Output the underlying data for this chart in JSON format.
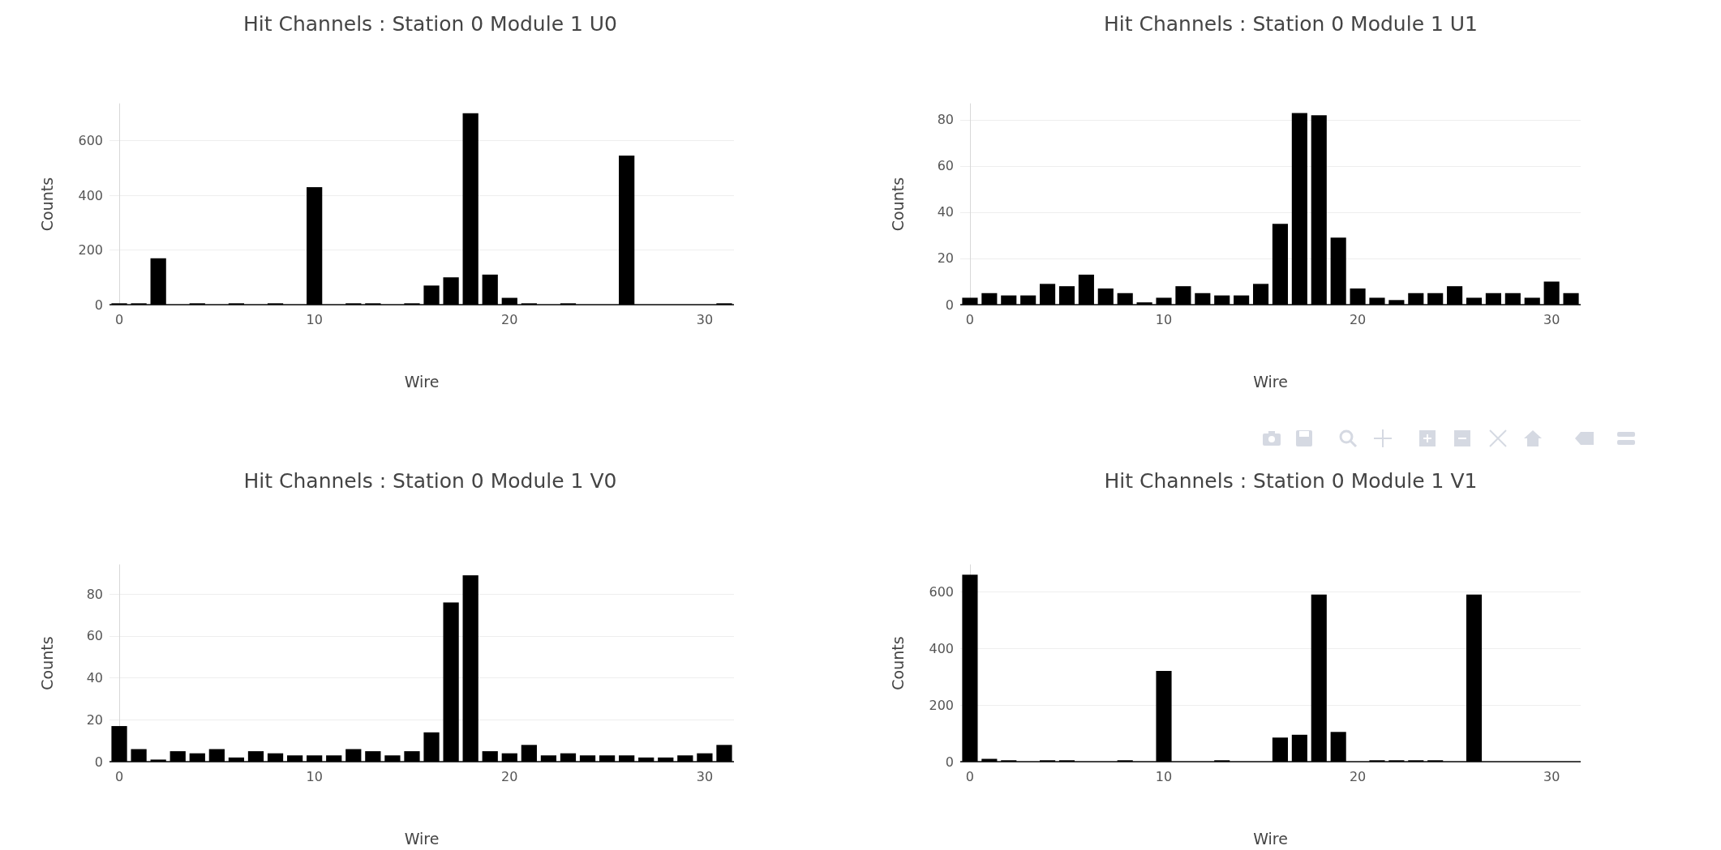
{
  "chart_data": [
    {
      "type": "bar",
      "title": "Hit Channels : Station 0 Module 1 U0",
      "xlabel": "Wire",
      "ylabel": "Counts",
      "color": "#000000",
      "grid": "y",
      "x": [
        0,
        1,
        2,
        3,
        4,
        5,
        6,
        7,
        8,
        9,
        10,
        11,
        12,
        13,
        14,
        15,
        16,
        17,
        18,
        19,
        20,
        21,
        22,
        23,
        24,
        25,
        26,
        27,
        28,
        29,
        30,
        31
      ],
      "xlim": [
        -0.5,
        31.5
      ],
      "xticks": [
        0,
        10,
        20,
        30
      ],
      "ylim": [
        0,
        735
      ],
      "yticks": [
        0,
        200,
        400,
        600
      ],
      "values": [
        5,
        5,
        170,
        0,
        5,
        0,
        5,
        0,
        5,
        0,
        430,
        0,
        5,
        5,
        0,
        5,
        70,
        100,
        700,
        110,
        25,
        5,
        0,
        5,
        0,
        0,
        545,
        0,
        0,
        0,
        0,
        5
      ]
    },
    {
      "type": "bar",
      "title": "Hit Channels : Station 0 Module 1 U1",
      "xlabel": "Wire",
      "ylabel": "Counts",
      "color": "#000000",
      "grid": "y",
      "x": [
        0,
        1,
        2,
        3,
        4,
        5,
        6,
        7,
        8,
        9,
        10,
        11,
        12,
        13,
        14,
        15,
        16,
        17,
        18,
        19,
        20,
        21,
        22,
        23,
        24,
        25,
        26,
        27,
        28,
        29,
        30,
        31
      ],
      "xlim": [
        -0.5,
        31.5
      ],
      "xticks": [
        0,
        10,
        20,
        30
      ],
      "ylim": [
        0,
        87
      ],
      "yticks": [
        0,
        20,
        40,
        60,
        80
      ],
      "values": [
        3,
        5,
        4,
        4,
        9,
        8,
        13,
        7,
        5,
        1,
        3,
        8,
        5,
        4,
        4,
        9,
        35,
        83,
        82,
        29,
        7,
        3,
        2,
        5,
        5,
        8,
        3,
        5,
        5,
        3,
        10,
        5
      ]
    },
    {
      "type": "bar",
      "title": "Hit Channels : Station 0 Module 1 V0",
      "xlabel": "Wire",
      "ylabel": "Counts",
      "color": "#000000",
      "grid": "y",
      "x": [
        0,
        1,
        2,
        3,
        4,
        5,
        6,
        7,
        8,
        9,
        10,
        11,
        12,
        13,
        14,
        15,
        16,
        17,
        18,
        19,
        20,
        21,
        22,
        23,
        24,
        25,
        26,
        27,
        28,
        29,
        30,
        31
      ],
      "xlim": [
        -0.5,
        31.5
      ],
      "xticks": [
        0,
        10,
        20,
        30
      ],
      "ylim": [
        0,
        94
      ],
      "yticks": [
        0,
        20,
        40,
        60,
        80
      ],
      "values": [
        17,
        6,
        1,
        5,
        4,
        6,
        2,
        5,
        4,
        3,
        3,
        3,
        6,
        5,
        3,
        5,
        14,
        76,
        89,
        5,
        4,
        8,
        3,
        4,
        3,
        3,
        3,
        2,
        2,
        3,
        4,
        8
      ]
    },
    {
      "type": "bar",
      "title": "Hit Channels : Station 0 Module 1 V1",
      "xlabel": "Wire",
      "ylabel": "Counts",
      "color": "#000000",
      "grid": "y",
      "x": [
        0,
        1,
        2,
        3,
        4,
        5,
        6,
        7,
        8,
        9,
        10,
        11,
        12,
        13,
        14,
        15,
        16,
        17,
        18,
        19,
        20,
        21,
        22,
        23,
        24,
        25,
        26,
        27,
        28,
        29,
        30,
        31
      ],
      "xlim": [
        -0.5,
        31.5
      ],
      "xticks": [
        0,
        10,
        20,
        30
      ],
      "ylim": [
        0,
        695
      ],
      "yticks": [
        0,
        200,
        400,
        600
      ],
      "values": [
        660,
        10,
        5,
        0,
        5,
        5,
        0,
        0,
        5,
        0,
        320,
        0,
        0,
        5,
        0,
        0,
        85,
        95,
        590,
        105,
        0,
        5,
        5,
        5,
        5,
        0,
        590,
        0,
        0,
        0,
        0,
        0
      ]
    }
  ]
}
